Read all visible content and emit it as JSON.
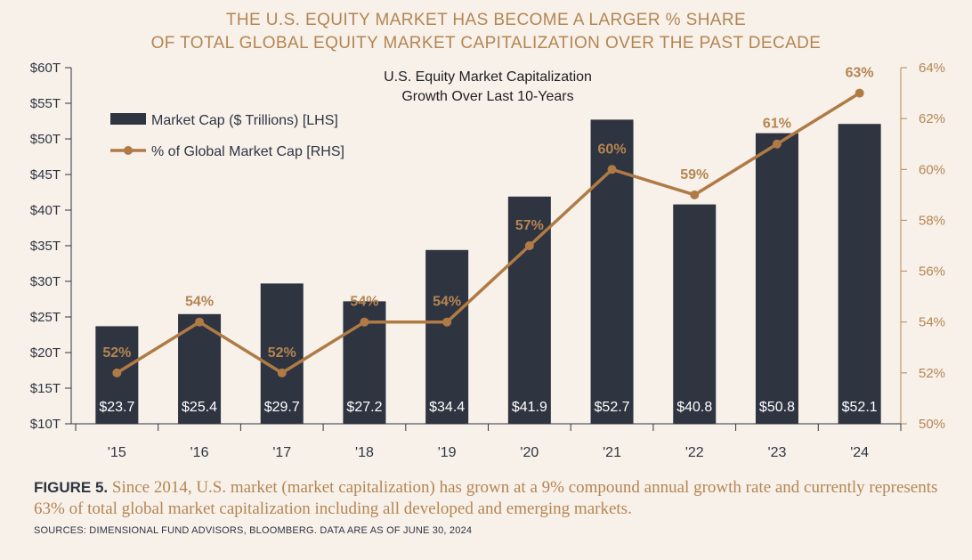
{
  "title_line1": "THE U.S. EQUITY MARKET HAS BECOME A LARGER % SHARE",
  "title_line2": "OF TOTAL GLOBAL EQUITY MARKET CAPITALIZATION OVER THE PAST DECADE",
  "chart_data": {
    "type": "bar",
    "title": "U.S. Equity Market Capitalization",
    "subtitle": "Growth Over Last 10-Years",
    "categories": [
      "'15",
      "'16",
      "'17",
      "'18",
      "'19",
      "'20",
      "'21",
      "'22",
      "'23",
      "'24"
    ],
    "series": [
      {
        "name": "Market Cap ($ Trillions) [LHS]",
        "type": "bar",
        "axis": "left",
        "values": [
          23.7,
          25.4,
          29.7,
          27.2,
          34.4,
          41.9,
          52.7,
          40.8,
          50.8,
          52.1
        ],
        "labels": [
          "$23.7",
          "$25.4",
          "$29.7",
          "$27.2",
          "$34.4",
          "$41.9",
          "$52.7",
          "$40.8",
          "$50.8",
          "$52.1"
        ],
        "color": "#2f3441"
      },
      {
        "name": "% of Global Market Cap [RHS]",
        "type": "line",
        "axis": "right",
        "values": [
          52,
          54,
          52,
          54,
          54,
          57,
          60,
          59,
          61,
          63
        ],
        "labels": [
          "52%",
          "54%",
          "52%",
          "54%",
          "54%",
          "57%",
          "60%",
          "59%",
          "61%",
          "63%"
        ],
        "color": "#b07a45"
      }
    ],
    "y_left": {
      "range": [
        10,
        60
      ],
      "ticks": [
        "$10T",
        "$15T",
        "$20T",
        "$25T",
        "$30T",
        "$35T",
        "$40T",
        "$45T",
        "$50T",
        "$55T",
        "$60T"
      ]
    },
    "y_right": {
      "range": [
        50,
        64
      ],
      "ticks": [
        "50%",
        "52%",
        "54%",
        "56%",
        "58%",
        "60%",
        "62%",
        "64%"
      ]
    },
    "grid": false,
    "legend": "top-left"
  },
  "caption": {
    "figure_label": "FIGURE 5.",
    "text": "Since 2014, U.S. market (market capitalization) has grown at a 9% compound annual growth rate and currently represents 63% of total global market capitalization including all developed and emerging markets."
  },
  "sources": "SOURCES: DIMENSIONAL FUND ADVISORS, BLOOMBERG. DATA ARE AS OF JUNE 30, 2024",
  "colors": {
    "accent": "#b58552",
    "bar": "#2f3441",
    "background": "#f7f1ea"
  }
}
